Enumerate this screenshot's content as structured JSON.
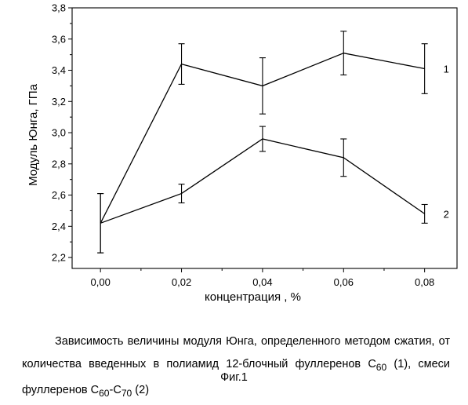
{
  "chart_data": {
    "type": "line",
    "xlabel": "концентрация , %",
    "ylabel": "Модуль Юнга, ГПа",
    "xlim": [
      -0.007,
      0.088
    ],
    "ylim": [
      2.13,
      3.8
    ],
    "xticks": [
      0.0,
      0.02,
      0.04,
      0.06,
      0.08
    ],
    "xtick_labels": [
      "0,00",
      "0,02",
      "0,04",
      "0,06",
      "0,08"
    ],
    "yticks": [
      2.2,
      2.4,
      2.6,
      2.8,
      3.0,
      3.2,
      3.4,
      3.6,
      3.8
    ],
    "ytick_labels": [
      "2,2",
      "2,4",
      "2,6",
      "2,8",
      "3,0",
      "3,2",
      "3,4",
      "3,6",
      "3,8"
    ],
    "grid": false,
    "x": [
      0.0,
      0.02,
      0.04,
      0.06,
      0.08
    ],
    "series": [
      {
        "label": "1",
        "values": [
          2.42,
          3.44,
          3.3,
          3.51,
          3.41
        ],
        "error_low": [
          2.23,
          3.31,
          3.12,
          3.37,
          3.25
        ],
        "error_high": [
          2.61,
          3.57,
          3.48,
          3.65,
          3.57
        ]
      },
      {
        "label": "2",
        "values": [
          2.42,
          2.61,
          2.96,
          2.84,
          2.48
        ],
        "error_low": [
          2.23,
          2.55,
          2.88,
          2.72,
          2.42
        ],
        "error_high": [
          2.61,
          2.67,
          3.04,
          2.96,
          2.54
        ]
      }
    ]
  },
  "caption": {
    "line1": "Зависимость величины модуля Юнга, определенного методом сжатия, от",
    "line2_prefix": "количества введенных в полиамид 12-блочный фуллеренов С",
    "line2_sub": "60",
    "line2_suffix": " (1), смеси",
    "line3_prefix": "фуллеренов С",
    "line3_sub1": "60",
    "line3_mid": "-С",
    "line3_sub2": "70",
    "line3_suffix": " (2)"
  },
  "figure_label": "Фиг.1"
}
